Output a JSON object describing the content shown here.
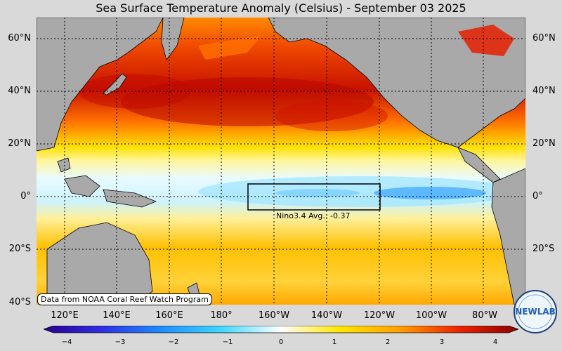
{
  "title": "Sea Surface Temperature Anomaly (Celsius) - September 03 2025",
  "lat_labels": [
    "60°N",
    "40°N",
    "20°N",
    "0°",
    "20°S",
    "40°S"
  ],
  "lon_labels": [
    "120°E",
    "140°E",
    "160°E",
    "180°",
    "160°W",
    "140°W",
    "120°W",
    "100°W",
    "80°W"
  ],
  "colorbar": {
    "min": -4,
    "max": 4,
    "ticks": [
      "−4",
      "−3",
      "−2",
      "−1",
      "0",
      "1",
      "2",
      "3",
      "4"
    ],
    "colors": [
      "#2a0090",
      "#2f2fe8",
      "#1e8fff",
      "#40d8ff",
      "#ffffff",
      "#ffe600",
      "#ff9f00",
      "#ee2200",
      "#8b0000"
    ]
  },
  "nino_box": {
    "label": "Nino3.4 Avg.: -0.37",
    "avg_anomaly": -0.37
  },
  "credit": "Data from NOAA Coral Reef Watch Program",
  "logo": {
    "text_left": "NEW",
    "text_right": "LAB"
  },
  "colors": {
    "land": "#a9a9a9",
    "ocean_warm": "#ffb000",
    "ocean_hot": "#d81800",
    "ocean_cool": "#bfefff",
    "background": "#d9d9d9"
  }
}
